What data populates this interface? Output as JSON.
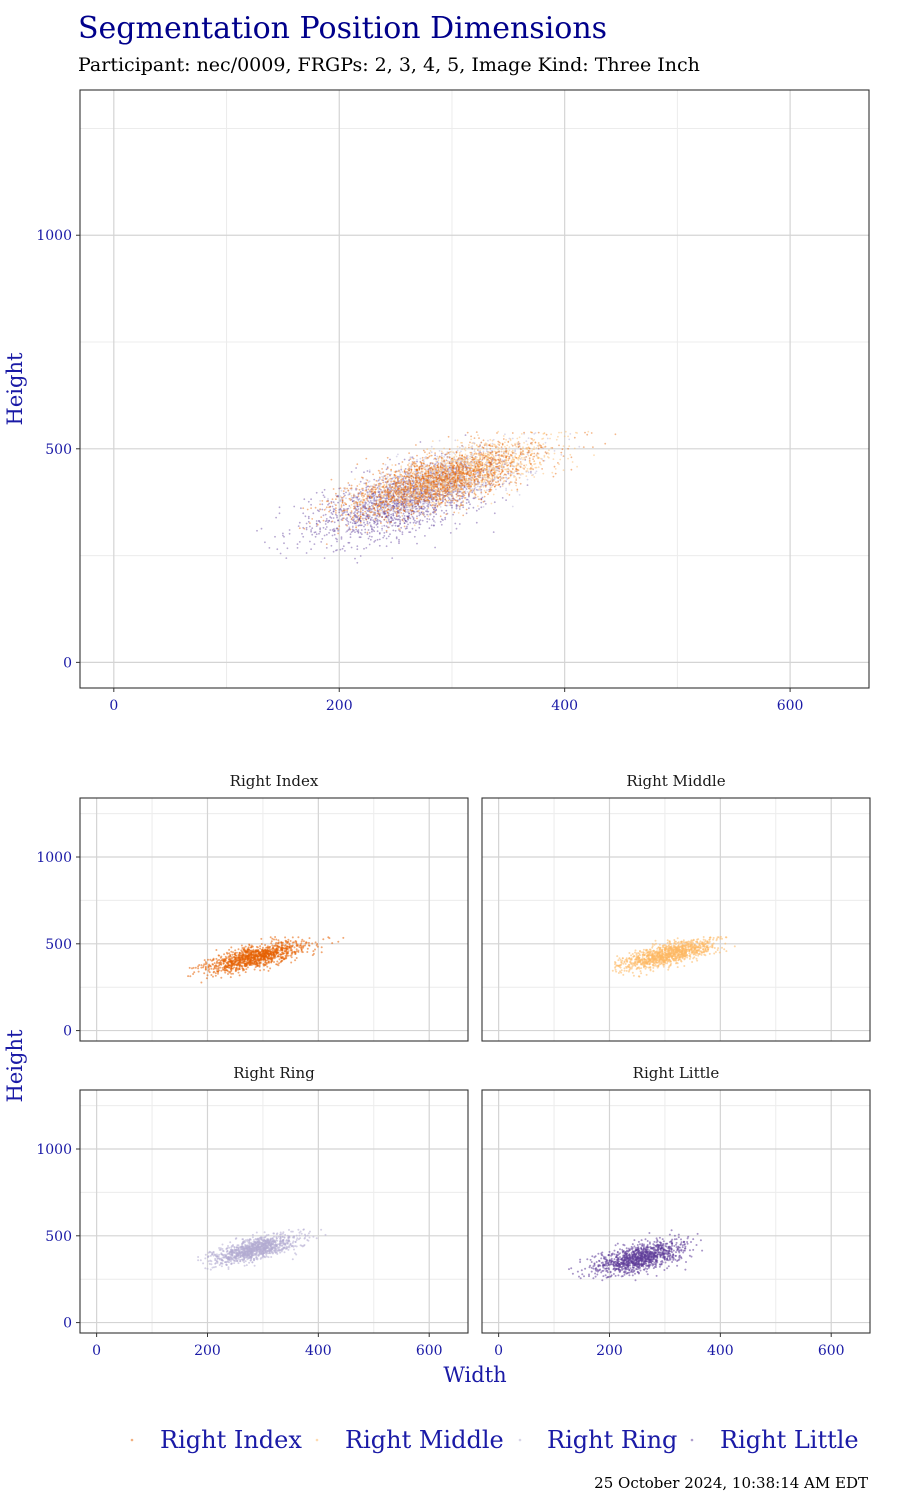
{
  "title": "Segmentation Position Dimensions",
  "subtitle": "Participant: nec/0009, FRGPs: 2, 3, 4, 5, Image Kind: Three Inch",
  "timestamp": "25 October 2024, 10:38:14 AM EDT",
  "chart_data": {
    "type": "scatter",
    "xlabel": "Width",
    "ylabel": "Height",
    "xlim": [
      -30,
      670
    ],
    "ylim": [
      -60,
      1340
    ],
    "x_ticks": [
      0,
      200,
      400,
      600
    ],
    "y_ticks": [
      0,
      500,
      1000
    ],
    "grid": true,
    "legend_position": "bottom",
    "combined_panel": {
      "ylabel": "Height",
      "series_draw_order": [
        "Right Little",
        "Right Ring",
        "Right Middle",
        "Right Index"
      ]
    },
    "facet_panels": {
      "ylabel": "Height",
      "xlabel": "Width",
      "layout": "2x2",
      "order": [
        "Right Index",
        "Right Middle",
        "Right Ring",
        "Right Little"
      ]
    },
    "series": [
      {
        "name": "Right Index",
        "color": "#E66101",
        "approx_distribution": {
          "width_center": 285,
          "width_sd": 45,
          "height_intercept": 210,
          "height_slope": 0.8,
          "height_sd": 32,
          "height_max": 540,
          "width_range": [
            165,
            465
          ]
        }
      },
      {
        "name": "Right Middle",
        "color": "#FDB863",
        "approx_distribution": {
          "width_center": 305,
          "width_sd": 42,
          "height_intercept": 215,
          "height_slope": 0.78,
          "height_sd": 30,
          "height_max": 540,
          "width_range": [
            205,
            470
          ]
        }
      },
      {
        "name": "Right Ring",
        "color": "#B2ABD2",
        "approx_distribution": {
          "width_center": 285,
          "width_sd": 38,
          "height_intercept": 210,
          "height_slope": 0.8,
          "height_sd": 30,
          "height_max": 540,
          "width_range": [
            180,
            435
          ]
        }
      },
      {
        "name": "Right Little",
        "color": "#5E3C99",
        "approx_distribution": {
          "width_center": 255,
          "width_sd": 40,
          "height_intercept": 185,
          "height_slope": 0.8,
          "height_sd": 38,
          "height_max": 540,
          "width_range": [
            120,
            390
          ]
        }
      }
    ]
  }
}
